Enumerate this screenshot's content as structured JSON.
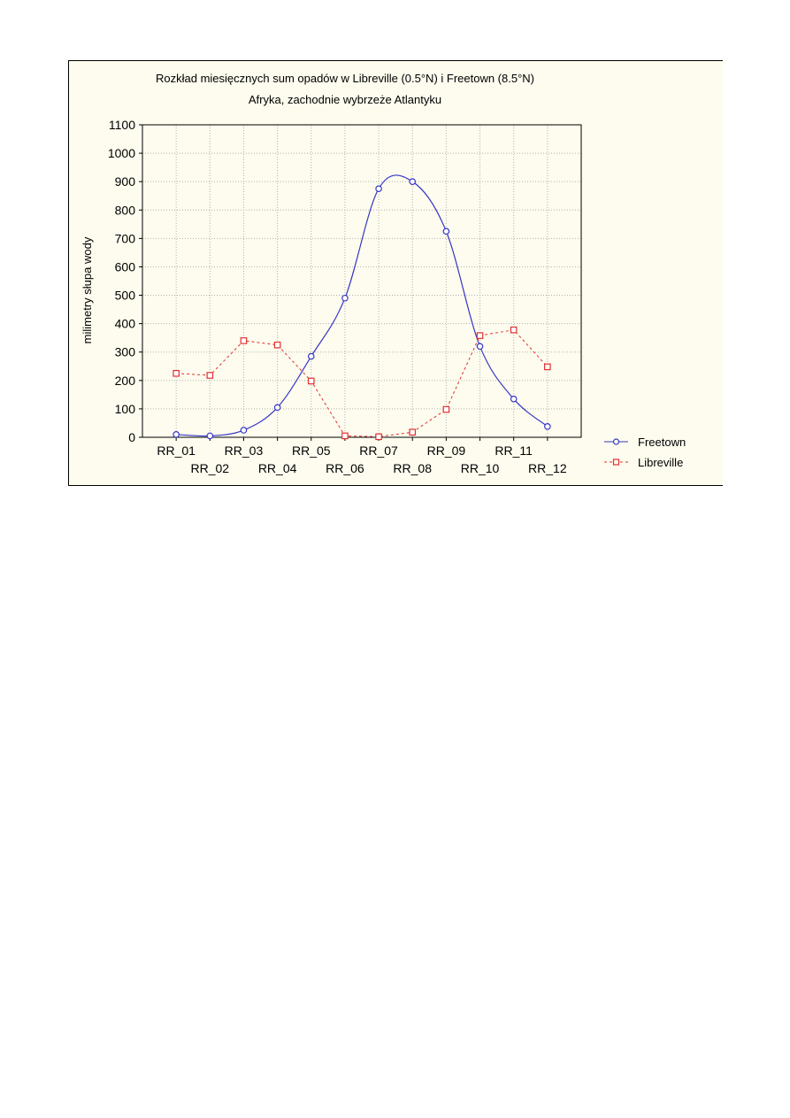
{
  "chart_data": {
    "type": "line",
    "title": "Rozkład miesięcznych sum opadów w Libreville (0.5°N) i Freetown (8.5°N)",
    "subtitle": "Afryka, zachodnie wybrzeże Atlantyku",
    "xlabel": "",
    "ylabel": "milimetry słupa wody",
    "categories": [
      "RR_01",
      "RR_02",
      "RR_03",
      "RR_04",
      "RR_05",
      "RR_06",
      "RR_07",
      "RR_08",
      "RR_09",
      "RR_10",
      "RR_11",
      "RR_12"
    ],
    "ylim": [
      0,
      1100
    ],
    "yticks": [
      0,
      100,
      200,
      300,
      400,
      500,
      600,
      700,
      800,
      900,
      1000,
      1100
    ],
    "grid": true,
    "legend_position": "right-bottom",
    "series": [
      {
        "name": "Freetown",
        "color": "#3737c8",
        "marker": "circle",
        "line": "solid",
        "values": [
          10,
          5,
          25,
          105,
          285,
          490,
          875,
          900,
          725,
          320,
          135,
          38
        ]
      },
      {
        "name": "Libreville",
        "color": "#e03030",
        "marker": "square",
        "line": "dashed",
        "values": [
          225,
          218,
          340,
          325,
          198,
          5,
          2,
          18,
          98,
          358,
          378,
          248
        ]
      }
    ]
  }
}
